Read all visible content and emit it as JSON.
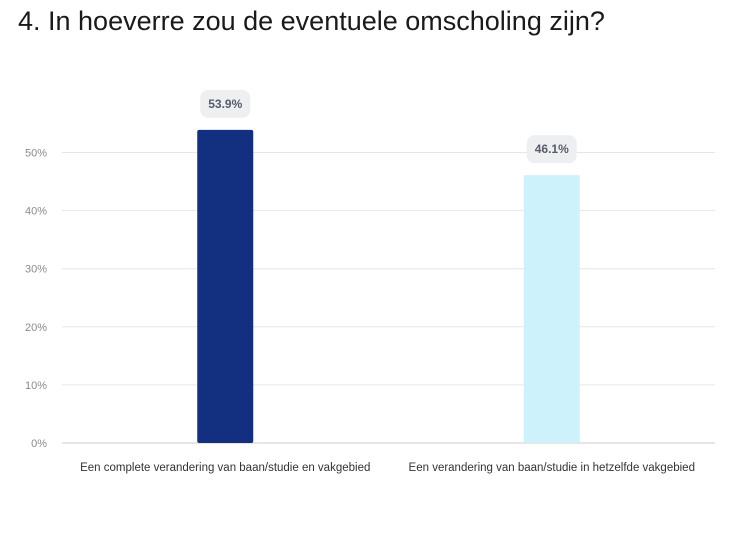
{
  "title": "4. In hoeverre zou de eventuele omscholing zijn?",
  "chart_data": {
    "type": "bar",
    "categories": [
      "Een complete verandering van baan/studie en vakgebied",
      "Een verandering van baan/studie in hetzelfde vakgebied"
    ],
    "values": [
      53.9,
      46.1
    ],
    "value_labels": [
      "53.9%",
      "46.1%"
    ],
    "bar_colors": [
      "#132f80",
      "#cef2fb"
    ],
    "yticks": [
      0,
      10,
      20,
      30,
      40,
      50
    ],
    "ytick_labels": [
      "0%",
      "10%",
      "20%",
      "30%",
      "40%",
      "50%"
    ],
    "ylim": [
      0,
      50
    ],
    "grid": true,
    "legend": false,
    "colors": {
      "grid": "#e6e6e6",
      "axis": "#cccccc",
      "tick_text": "#8a8a8a",
      "category_text": "#333333",
      "label_bg": "#eeeff1",
      "label_text": "#555d6b"
    }
  }
}
